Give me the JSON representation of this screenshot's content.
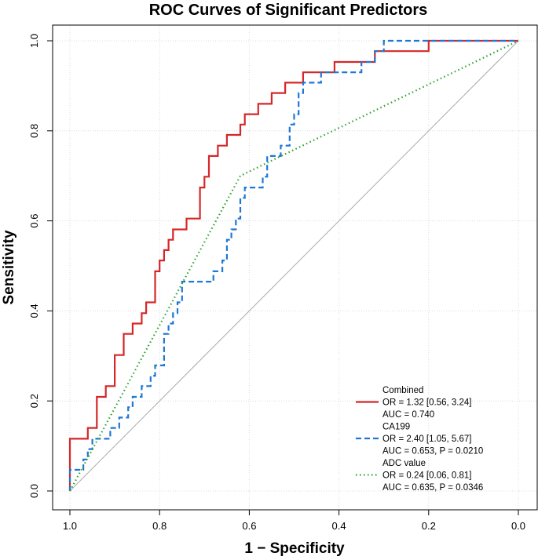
{
  "chart_data": {
    "type": "line",
    "title": "ROC Curves of Significant Predictors",
    "xlabel": "1 − Specificity",
    "ylabel": "Sensitivity",
    "x_reversed": true,
    "xlim": [
      1.0,
      0.0
    ],
    "ylim": [
      0.0,
      1.0
    ],
    "x_ticks": [
      1.0,
      0.8,
      0.6,
      0.4,
      0.2,
      0.0
    ],
    "x_tick_labels": [
      "1.0",
      "0.8",
      "0.6",
      "0.4",
      "0.2",
      "0.0"
    ],
    "y_ticks": [
      0.0,
      0.2,
      0.4,
      0.6,
      0.8,
      1.0
    ],
    "y_tick_labels": [
      "0.0",
      "0.2",
      "0.4",
      "0.6",
      "0.8",
      "1.0"
    ],
    "grid": true,
    "legend_position": "bottom-right",
    "reference_line": {
      "name": "chance",
      "color": "#aaaaaa",
      "points": [
        [
          1.0,
          0.0
        ],
        [
          0.0,
          1.0
        ]
      ]
    },
    "series": [
      {
        "name": "Combined",
        "legend_lines": [
          "Combined",
          "OR = 1.32 [0.56, 3.24]",
          "AUC = 0.740"
        ],
        "color": "#d62728",
        "style": "solid",
        "points": [
          [
            1.0,
            0.0
          ],
          [
            1.0,
            0.116
          ],
          [
            0.96,
            0.116
          ],
          [
            0.96,
            0.14
          ],
          [
            0.94,
            0.14
          ],
          [
            0.94,
            0.209
          ],
          [
            0.92,
            0.209
          ],
          [
            0.92,
            0.233
          ],
          [
            0.9,
            0.233
          ],
          [
            0.9,
            0.302
          ],
          [
            0.88,
            0.302
          ],
          [
            0.88,
            0.349
          ],
          [
            0.86,
            0.349
          ],
          [
            0.86,
            0.372
          ],
          [
            0.84,
            0.372
          ],
          [
            0.84,
            0.395
          ],
          [
            0.83,
            0.395
          ],
          [
            0.83,
            0.419
          ],
          [
            0.81,
            0.419
          ],
          [
            0.81,
            0.488
          ],
          [
            0.8,
            0.488
          ],
          [
            0.8,
            0.512
          ],
          [
            0.79,
            0.512
          ],
          [
            0.79,
            0.535
          ],
          [
            0.78,
            0.535
          ],
          [
            0.78,
            0.558
          ],
          [
            0.77,
            0.558
          ],
          [
            0.77,
            0.581
          ],
          [
            0.74,
            0.581
          ],
          [
            0.74,
            0.605
          ],
          [
            0.71,
            0.605
          ],
          [
            0.71,
            0.674
          ],
          [
            0.7,
            0.674
          ],
          [
            0.7,
            0.698
          ],
          [
            0.69,
            0.698
          ],
          [
            0.69,
            0.744
          ],
          [
            0.67,
            0.744
          ],
          [
            0.67,
            0.767
          ],
          [
            0.65,
            0.767
          ],
          [
            0.65,
            0.791
          ],
          [
            0.62,
            0.791
          ],
          [
            0.62,
            0.814
          ],
          [
            0.61,
            0.814
          ],
          [
            0.61,
            0.837
          ],
          [
            0.58,
            0.837
          ],
          [
            0.58,
            0.86
          ],
          [
            0.55,
            0.86
          ],
          [
            0.55,
            0.884
          ],
          [
            0.52,
            0.884
          ],
          [
            0.52,
            0.907
          ],
          [
            0.48,
            0.907
          ],
          [
            0.48,
            0.93
          ],
          [
            0.41,
            0.93
          ],
          [
            0.41,
            0.953
          ],
          [
            0.32,
            0.953
          ],
          [
            0.32,
            0.977
          ],
          [
            0.2,
            0.977
          ],
          [
            0.2,
            1.0
          ],
          [
            0.0,
            1.0
          ]
        ]
      },
      {
        "name": "CA199",
        "legend_lines": [
          "CA199",
          "OR = 2.40 [1.05, 5.67]",
          "AUC = 0.653, P = 0.0210"
        ],
        "color": "#1f77d4",
        "style": "dashed",
        "points": [
          [
            1.0,
            0.0
          ],
          [
            1.0,
            0.047
          ],
          [
            0.97,
            0.047
          ],
          [
            0.97,
            0.07
          ],
          [
            0.96,
            0.07
          ],
          [
            0.96,
            0.093
          ],
          [
            0.95,
            0.093
          ],
          [
            0.95,
            0.116
          ],
          [
            0.91,
            0.116
          ],
          [
            0.91,
            0.14
          ],
          [
            0.89,
            0.14
          ],
          [
            0.89,
            0.163
          ],
          [
            0.87,
            0.163
          ],
          [
            0.87,
            0.186
          ],
          [
            0.86,
            0.186
          ],
          [
            0.86,
            0.209
          ],
          [
            0.84,
            0.209
          ],
          [
            0.84,
            0.233
          ],
          [
            0.82,
            0.233
          ],
          [
            0.82,
            0.256
          ],
          [
            0.81,
            0.256
          ],
          [
            0.81,
            0.279
          ],
          [
            0.79,
            0.279
          ],
          [
            0.79,
            0.349
          ],
          [
            0.78,
            0.349
          ],
          [
            0.78,
            0.372
          ],
          [
            0.77,
            0.372
          ],
          [
            0.77,
            0.395
          ],
          [
            0.76,
            0.395
          ],
          [
            0.76,
            0.419
          ],
          [
            0.75,
            0.419
          ],
          [
            0.75,
            0.465
          ],
          [
            0.68,
            0.465
          ],
          [
            0.68,
            0.488
          ],
          [
            0.66,
            0.488
          ],
          [
            0.66,
            0.512
          ],
          [
            0.65,
            0.512
          ],
          [
            0.65,
            0.558
          ],
          [
            0.64,
            0.558
          ],
          [
            0.64,
            0.581
          ],
          [
            0.63,
            0.581
          ],
          [
            0.63,
            0.605
          ],
          [
            0.62,
            0.605
          ],
          [
            0.62,
            0.651
          ],
          [
            0.61,
            0.651
          ],
          [
            0.61,
            0.674
          ],
          [
            0.57,
            0.674
          ],
          [
            0.57,
            0.698
          ],
          [
            0.56,
            0.698
          ],
          [
            0.56,
            0.744
          ],
          [
            0.53,
            0.744
          ],
          [
            0.53,
            0.767
          ],
          [
            0.51,
            0.767
          ],
          [
            0.51,
            0.814
          ],
          [
            0.5,
            0.814
          ],
          [
            0.5,
            0.837
          ],
          [
            0.49,
            0.837
          ],
          [
            0.49,
            0.884
          ],
          [
            0.48,
            0.884
          ],
          [
            0.48,
            0.907
          ],
          [
            0.44,
            0.907
          ],
          [
            0.44,
            0.93
          ],
          [
            0.35,
            0.93
          ],
          [
            0.35,
            0.953
          ],
          [
            0.32,
            0.953
          ],
          [
            0.32,
            0.977
          ],
          [
            0.3,
            0.977
          ],
          [
            0.3,
            1.0
          ],
          [
            0.0,
            1.0
          ]
        ]
      },
      {
        "name": "ADC value",
        "legend_lines": [
          "ADC value",
          "OR = 0.24 [0.06, 0.81]",
          "AUC = 0.635, P = 0.0346"
        ],
        "color": "#2ca02c",
        "style": "dotted",
        "points": [
          [
            1.0,
            0.0
          ],
          [
            0.62,
            0.7
          ],
          [
            0.0,
            1.0
          ]
        ]
      }
    ]
  }
}
